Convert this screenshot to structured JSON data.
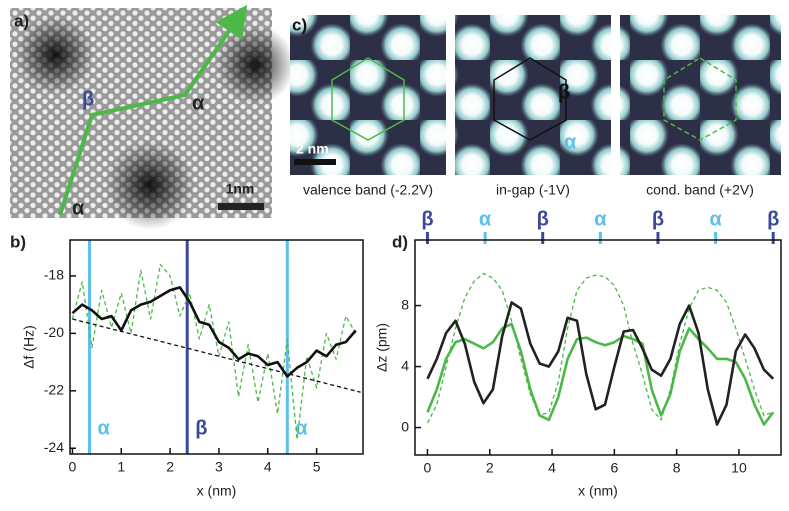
{
  "panels": {
    "a": {
      "label": "a)",
      "annotations": [
        "β",
        "α",
        "α"
      ],
      "scale_bar": "1nm"
    },
    "c": {
      "label": "c)",
      "scale_bar": "2 nm",
      "captions": [
        "valence band (-2.2V)",
        "in-gap (-1V)",
        "cond. band (+2V)"
      ],
      "annotations": [
        "β",
        "α"
      ]
    }
  },
  "chart_data": [
    {
      "type": "line",
      "panel_label": "b)",
      "xlabel": "x (nm)",
      "ylabel": "Δf (Hz)",
      "xlim": [
        -0.05,
        5.95
      ],
      "ylim": [
        -24.2,
        -16.75
      ],
      "xticks": [
        0,
        1,
        2,
        3,
        4,
        5
      ],
      "yticks": [
        -24,
        -22,
        -20,
        -18
      ],
      "markers": [
        {
          "x": 0.35,
          "label": "α",
          "color": "#5bc0eb"
        },
        {
          "x": 2.35,
          "label": "β",
          "color": "#3a4a9a"
        },
        {
          "x": 4.4,
          "label": "α",
          "color": "#5bc0eb"
        }
      ],
      "x": [
        0,
        0.2,
        0.4,
        0.6,
        0.8,
        1.0,
        1.2,
        1.4,
        1.6,
        1.8,
        2.0,
        2.2,
        2.4,
        2.6,
        2.8,
        3.0,
        3.2,
        3.4,
        3.6,
        3.8,
        4.0,
        4.2,
        4.4,
        4.6,
        4.8,
        5.0,
        5.2,
        5.4,
        5.6,
        5.8
      ],
      "series": [
        {
          "color": "#4cb848",
          "dash": true,
          "values": [
            -19.5,
            -18.2,
            -20.5,
            -18.5,
            -19.8,
            -18.6,
            -20.0,
            -17.8,
            -19.5,
            -17.6,
            -18.0,
            -19.4,
            -18.6,
            -20.2,
            -19.0,
            -20.8,
            -19.6,
            -22.2,
            -20.4,
            -22.4,
            -20.7,
            -22.8,
            -20.2,
            -23.7,
            -20.8,
            -21.9,
            -20.0,
            -20.9,
            -19.4,
            -20.0
          ]
        },
        {
          "color": "#111111",
          "values": [
            -19.3,
            -19.0,
            -19.2,
            -19.5,
            -19.4,
            -19.9,
            -19.2,
            -19.0,
            -18.9,
            -18.7,
            -18.5,
            -18.4,
            -18.9,
            -19.6,
            -19.7,
            -20.3,
            -20.5,
            -20.9,
            -20.7,
            -20.8,
            -21.1,
            -21.0,
            -21.5,
            -21.2,
            -21.0,
            -20.6,
            -20.8,
            -20.4,
            -20.3,
            -19.9
          ]
        },
        {
          "color": "#111111",
          "dash": true,
          "thin": true,
          "x": [
            0,
            5.9
          ],
          "values": [
            -19.5,
            -22.05
          ]
        }
      ]
    },
    {
      "type": "line",
      "panel_label": "d)",
      "xlabel": "x (nm)",
      "ylabel": "Δz (pm)",
      "xlim": [
        -0.4,
        11.35
      ],
      "ylim": [
        -1.8,
        12.3
      ],
      "xticks": [
        0,
        2,
        4,
        6,
        8,
        10
      ],
      "yticks": [
        0,
        4,
        8
      ],
      "top_markers": [
        {
          "x": 0,
          "label": "β",
          "color": "#3a4a9a"
        },
        {
          "x": 1.85,
          "label": "α",
          "color": "#5bc0eb"
        },
        {
          "x": 3.7,
          "label": "β",
          "color": "#3a4a9a"
        },
        {
          "x": 5.55,
          "label": "α",
          "color": "#5bc0eb"
        },
        {
          "x": 7.4,
          "label": "β",
          "color": "#3a4a9a"
        },
        {
          "x": 9.25,
          "label": "α",
          "color": "#5bc0eb"
        },
        {
          "x": 11.1,
          "label": "β",
          "color": "#3a4a9a"
        }
      ],
      "x": [
        0,
        0.3,
        0.6,
        0.9,
        1.2,
        1.5,
        1.8,
        2.1,
        2.4,
        2.7,
        3.0,
        3.3,
        3.6,
        3.9,
        4.2,
        4.5,
        4.8,
        5.1,
        5.4,
        5.7,
        6.0,
        6.3,
        6.6,
        6.9,
        7.2,
        7.5,
        7.8,
        8.1,
        8.4,
        8.7,
        9.0,
        9.3,
        9.6,
        9.9,
        10.2,
        10.5,
        10.8,
        11.1
      ],
      "series": [
        {
          "color": "#4cb848",
          "dash": true,
          "values": [
            0.3,
            1.5,
            4,
            6.5,
            8.5,
            9.6,
            10.1,
            9.8,
            9,
            7,
            4.5,
            2.2,
            0.8,
            1,
            3,
            6.5,
            9,
            9.8,
            10.0,
            9.9,
            9.3,
            8,
            5.5,
            3.5,
            1.2,
            0.5,
            2.5,
            5.5,
            7.8,
            9.0,
            9.2,
            9.0,
            8.2,
            6.5,
            4.5,
            2.5,
            0.8,
            1.0
          ]
        },
        {
          "color": "#4cb848",
          "values": [
            1,
            2.5,
            4.5,
            5.6,
            5.8,
            5.5,
            5.2,
            5.6,
            6.5,
            6.8,
            5,
            2.5,
            0.8,
            0.5,
            2,
            4.5,
            5.8,
            5.9,
            5.6,
            5.4,
            5.6,
            6,
            5.8,
            5.5,
            2.5,
            0.8,
            2.2,
            5,
            6.5,
            5.8,
            5.2,
            4.5,
            4.5,
            4.3,
            3.2,
            1.5,
            0.2,
            1.0
          ]
        },
        {
          "color": "#222222",
          "values": [
            3.2,
            4.5,
            6.2,
            7.0,
            5.5,
            3,
            1.6,
            2.5,
            6,
            8.2,
            7.8,
            5.5,
            4.2,
            4.0,
            5.0,
            7.2,
            7.0,
            3.5,
            1.2,
            1.5,
            4,
            6.3,
            6.4,
            5.2,
            3.8,
            3.4,
            4.5,
            6.8,
            8.0,
            6.2,
            2.5,
            0.2,
            1.5,
            5,
            6.1,
            5.2,
            3.8,
            3.2
          ]
        }
      ]
    }
  ]
}
